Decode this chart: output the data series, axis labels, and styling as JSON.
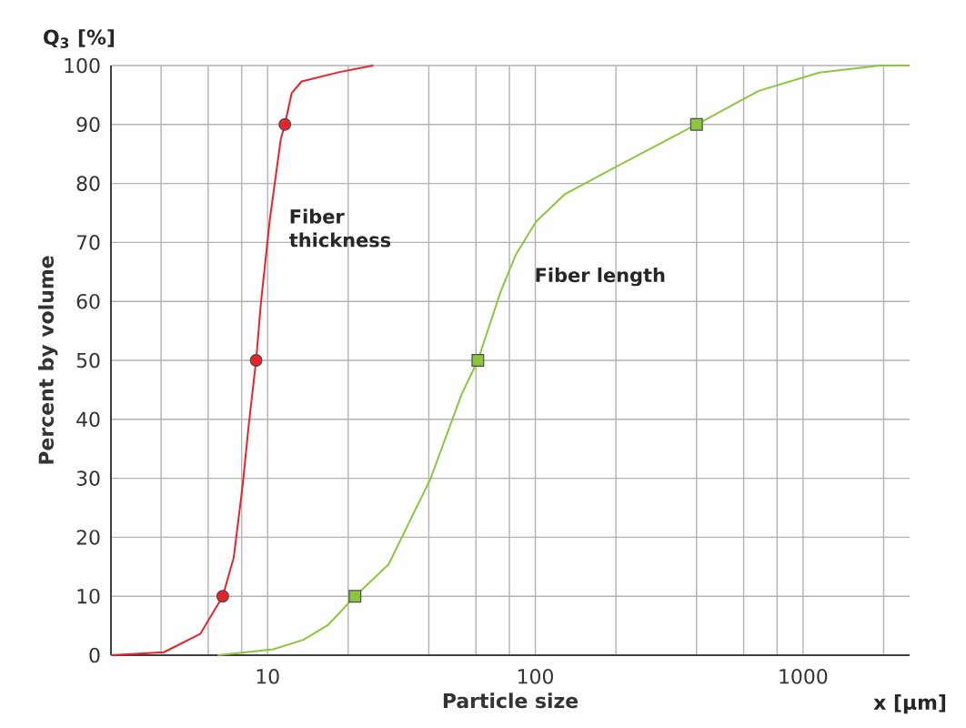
{
  "chart_data": {
    "type": "line",
    "xlabel": "Particle size",
    "ylabel": "Percent by volume",
    "log": "x",
    "grid": true,
    "xlim": [
      2.6,
      2500
    ],
    "ylim": [
      0,
      100
    ],
    "xticks": [
      {
        "value": 4,
        "label": null
      },
      {
        "value": 6,
        "label": null
      },
      {
        "value": 8,
        "label": null
      },
      10,
      {
        "value": 20,
        "label": null
      },
      {
        "value": 40,
        "label": null
      },
      {
        "value": 60,
        "label": null
      },
      {
        "value": 80,
        "label": null
      },
      100,
      {
        "value": 200,
        "label": null
      },
      {
        "value": 400,
        "label": null
      },
      {
        "value": 600,
        "label": null
      },
      {
        "value": 800,
        "label": null
      },
      1000,
      {
        "value": 2000,
        "label": null
      }
    ],
    "yticks": [
      0,
      10,
      20,
      30,
      40,
      50,
      60,
      70,
      80,
      90,
      100
    ],
    "series": [
      {
        "name": "Fiber thickness",
        "marker": "none",
        "color": "#e8232a",
        "x": [
          2.6,
          4.1,
          5.6,
          6.8,
          7.47,
          8.07,
          8.5,
          9.06,
          9.44,
          10.2,
          11.2,
          11.6,
          12.3,
          13.4,
          18.6,
          24.8
        ],
        "values": [
          0,
          0.5,
          3.6,
          10,
          16.5,
          28.8,
          39,
          50,
          59.7,
          74,
          87.5,
          90,
          95.3,
          97.3,
          98.9,
          100
        ]
      },
      {
        "name": "Fiber length",
        "marker": "none",
        "color": "#8cc63f",
        "x": [
          6.5,
          10.5,
          13.6,
          16.8,
          21.2,
          28.3,
          40.5,
          53,
          61,
          74.3,
          84.5,
          100.5,
          129,
          200,
          400,
          683,
          1150,
          1940,
          2500
        ],
        "values": [
          0,
          1,
          2.6,
          5.1,
          10,
          15.4,
          29.8,
          44.2,
          50,
          61.7,
          67.9,
          73.5,
          78.2,
          82.8,
          90,
          95.7,
          98.8,
          100,
          100
        ]
      },
      {
        "type": "scatter",
        "marker": "circle",
        "color": "#e8232a",
        "x": [
          6.8,
          9.06,
          11.6
        ],
        "values": [
          10,
          50,
          90
        ]
      },
      {
        "type": "scatter",
        "marker": "square",
        "color": "#8cc63f",
        "x": [
          21.2,
          61,
          400
        ],
        "values": [
          10,
          50,
          90
        ]
      }
    ],
    "annotations": [
      "Q$_{3}$ [%]",
      "x [µm]"
    ]
  }
}
